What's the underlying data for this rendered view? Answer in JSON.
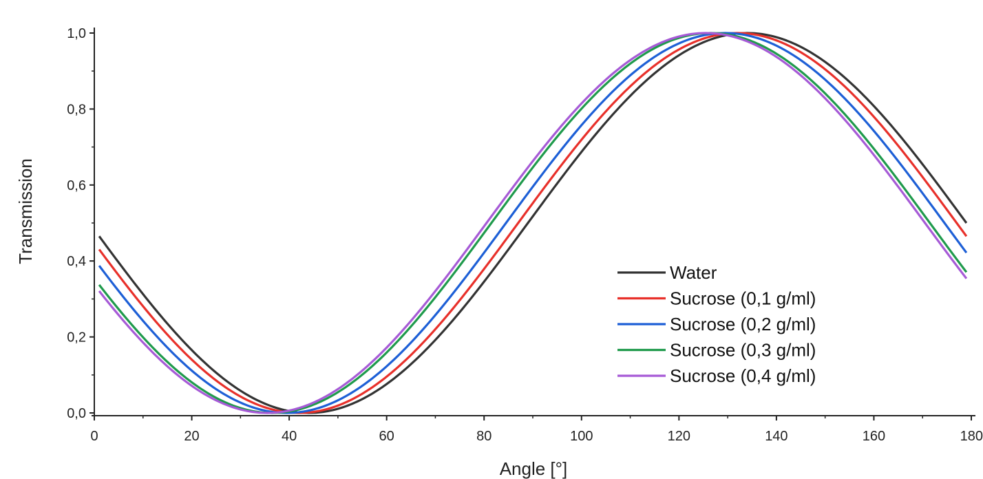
{
  "chart_data": {
    "type": "line",
    "title": "",
    "xlabel": "Angle [°]",
    "ylabel": "Transmission",
    "xlim": [
      0,
      180
    ],
    "ylim": [
      0,
      1
    ],
    "x_ticks": [
      "0",
      "20",
      "40",
      "60",
      "80",
      "100",
      "120",
      "140",
      "160",
      "180"
    ],
    "y_ticks": [
      "0,0",
      "0,2",
      "0,4",
      "0,6",
      "0,8",
      "1,0"
    ],
    "grid": false,
    "legend_position": "bottom-right",
    "x_range": [
      1,
      179
    ],
    "series": [
      {
        "name": "Water",
        "color": "#333333",
        "shape": "cos-squared",
        "min_angle": 44,
        "peak": 1.0,
        "trough": 0.0,
        "period": 180
      },
      {
        "name": "Sucrose (0,1 g/ml)",
        "color": "#e8302a",
        "shape": "cos-squared",
        "min_angle": 42,
        "peak": 1.0,
        "trough": 0.0,
        "period": 180
      },
      {
        "name": "Sucrose (0,2 g/ml)",
        "color": "#1d5fd6",
        "shape": "cos-squared",
        "min_angle": 39.5,
        "peak": 1.0,
        "trough": 0.0,
        "period": 180
      },
      {
        "name": "Sucrose (0,3 g/ml)",
        "color": "#1f9a4c",
        "shape": "cos-squared",
        "min_angle": 36.5,
        "peak": 1.0,
        "trough": 0.0,
        "period": 180
      },
      {
        "name": "Sucrose (0,4 g/ml)",
        "color": "#a65ad6",
        "shape": "cos-squared",
        "min_angle": 35.5,
        "peak": 1.0,
        "trough": 0.0,
        "period": 180
      }
    ]
  }
}
